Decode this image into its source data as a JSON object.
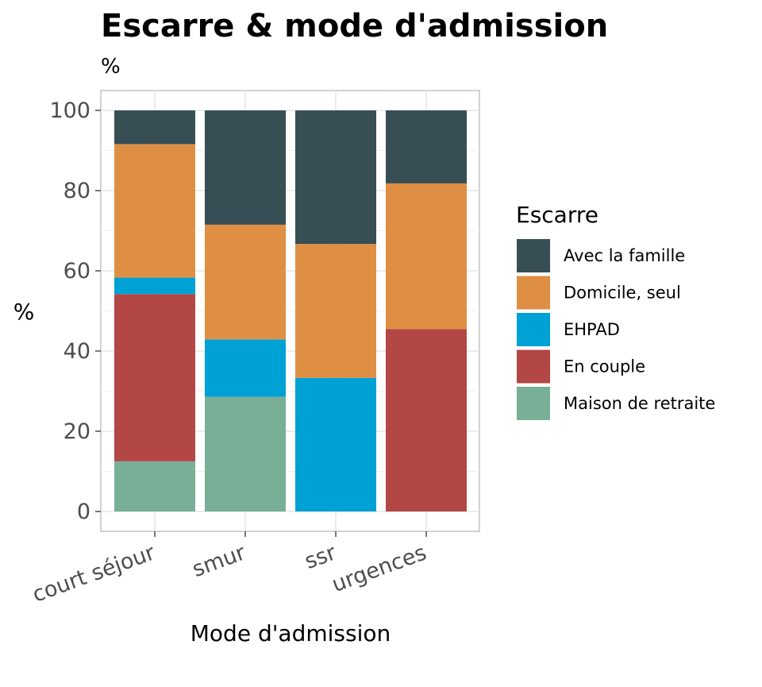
{
  "chart_data": {
    "type": "bar",
    "stacked": true,
    "title": "Escarre & mode d'admission",
    "subtitle": "%",
    "xlabel": "Mode d'admission",
    "ylabel": "%",
    "ylim": [
      0,
      100
    ],
    "yticks": [
      0,
      20,
      40,
      60,
      80,
      100
    ],
    "grid": true,
    "legend_title": "Escarre",
    "legend_position": "right",
    "categories": [
      "court séjour",
      "smur",
      "ssr",
      "urgences"
    ],
    "series": [
      {
        "name": "Maison de retraite",
        "color": "#79AF97",
        "values": [
          12.5,
          28.6,
          0,
          0
        ]
      },
      {
        "name": "En couple",
        "color": "#B24745",
        "values": [
          41.7,
          0,
          0,
          45.5
        ]
      },
      {
        "name": "EHPAD",
        "color": "#00A1D5",
        "values": [
          4.1,
          14.3,
          33.3,
          0
        ]
      },
      {
        "name": "Domicile, seul",
        "color": "#DF8F44",
        "values": [
          33.3,
          28.6,
          33.4,
          36.3
        ]
      },
      {
        "name": "Avec la famille",
        "color": "#374E55",
        "values": [
          8.4,
          28.5,
          33.3,
          18.2
        ]
      }
    ],
    "legend_order": [
      "Avec la famille",
      "Domicile, seul",
      "EHPAD",
      "En couple",
      "Maison de retraite"
    ]
  }
}
